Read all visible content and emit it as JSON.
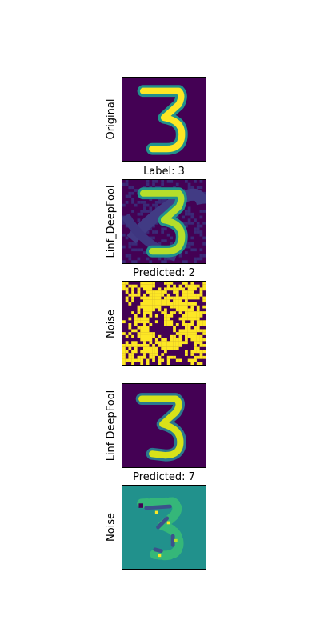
{
  "figure": {
    "rows": [
      {
        "ylabel": "Original",
        "caption": "Label: 3"
      },
      {
        "ylabel": "Linf_DeepFool",
        "caption": "Predicted: 2"
      },
      {
        "ylabel": "Noise",
        "caption": ""
      },
      {
        "ylabel": "Linf DeepFool",
        "caption": "Predicted: 7"
      },
      {
        "ylabel": "Noise",
        "caption": ""
      }
    ]
  },
  "colors": {
    "viridis_dark": "#440154",
    "viridis_mid": "#21918c",
    "viridis_yellow": "#fde725",
    "viridis_green": "#35b779",
    "frame": "#000000"
  }
}
